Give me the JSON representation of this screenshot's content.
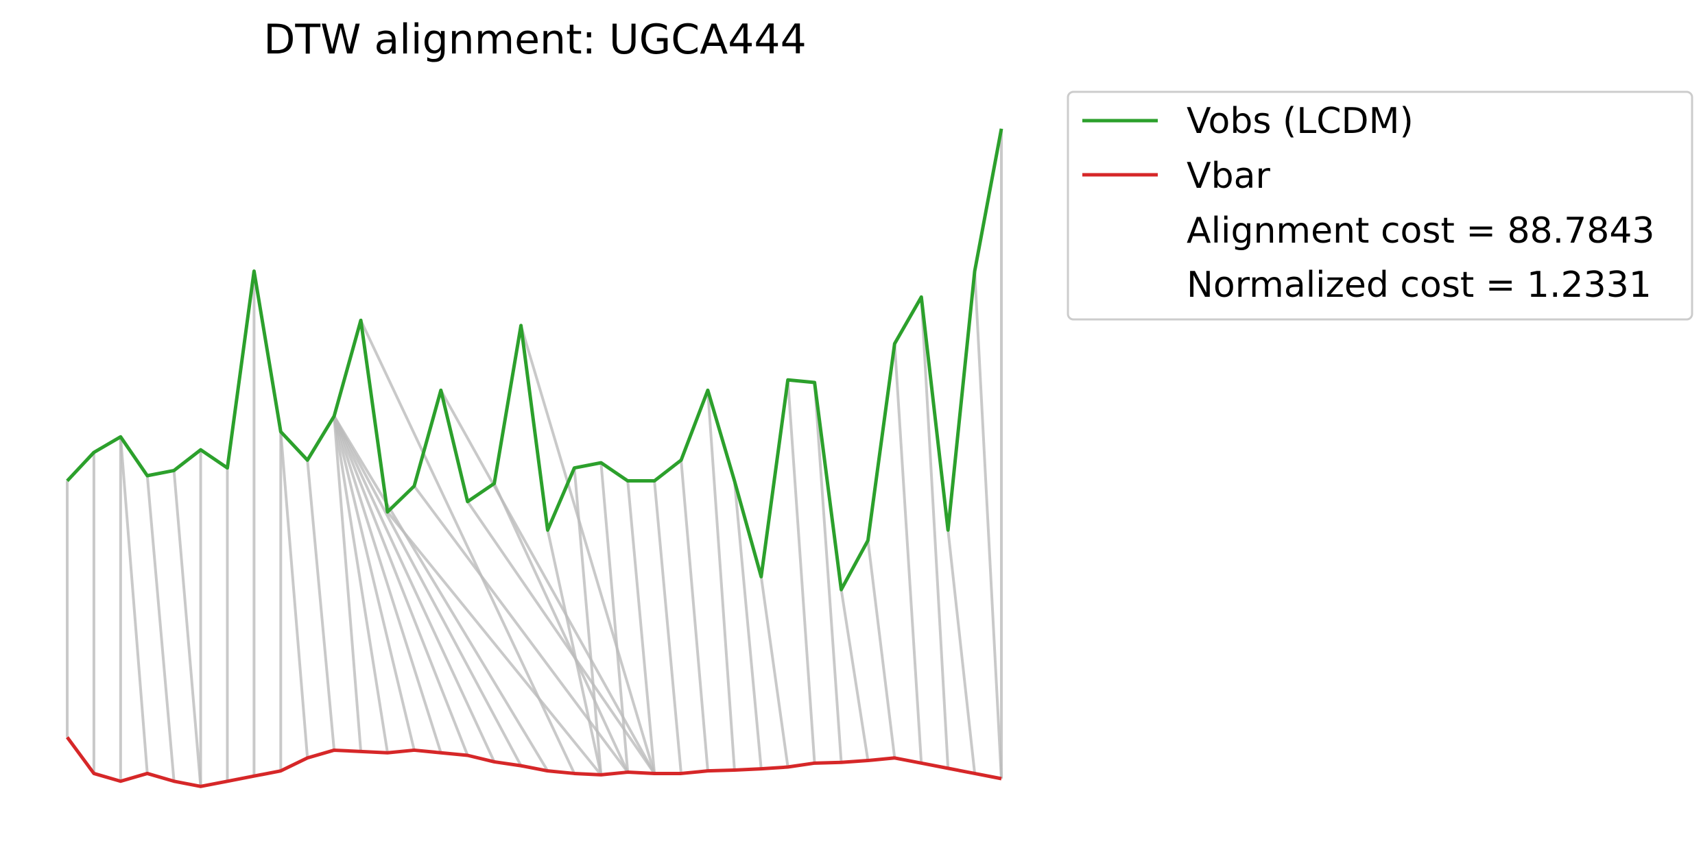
{
  "chart_data": {
    "type": "line",
    "title": "DTW alignment: UGCA444",
    "xlabel": "",
    "ylabel": "",
    "axes_visible": false,
    "grid": false,
    "legend_position": "outside-top-right",
    "colors": {
      "vobs": "#2ca02c",
      "vbar": "#d62728",
      "alignment": "#bbbbbb",
      "legend_border": "#cccccc"
    },
    "x": [
      0,
      1,
      2,
      3,
      4,
      5,
      6,
      7,
      8,
      9,
      10,
      11,
      12,
      13,
      14,
      15,
      16,
      17,
      18,
      19,
      20,
      21,
      22,
      23,
      24,
      25,
      26,
      27,
      28,
      29,
      30,
      31,
      32,
      33,
      34,
      35
    ],
    "series": [
      {
        "name": "Vobs (LCDM)",
        "values": [
          0.74,
          0.85,
          0.91,
          0.76,
          0.78,
          0.86,
          0.79,
          1.55,
          0.93,
          0.82,
          0.99,
          1.36,
          0.62,
          0.72,
          1.09,
          0.66,
          0.73,
          1.34,
          0.55,
          0.79,
          0.81,
          0.74,
          0.74,
          0.82,
          1.09,
          0.74,
          0.37,
          1.13,
          1.12,
          0.32,
          0.51,
          1.27,
          1.45,
          0.55,
          1.55,
          2.1
        ]
      },
      {
        "name": "Vbar",
        "values": [
          -0.25,
          -0.39,
          -0.42,
          -0.39,
          -0.42,
          -0.44,
          -0.42,
          -0.4,
          -0.38,
          -0.33,
          -0.3,
          -0.305,
          -0.31,
          -0.3,
          -0.31,
          -0.32,
          -0.345,
          -0.36,
          -0.38,
          -0.39,
          -0.395,
          -0.385,
          -0.39,
          -0.39,
          -0.38,
          -0.377,
          -0.372,
          -0.365,
          -0.35,
          -0.347,
          -0.34,
          -0.33,
          -0.35,
          -0.37,
          -0.39,
          -0.41
        ]
      }
    ],
    "alignment_path": [
      [
        0,
        0
      ],
      [
        1,
        1
      ],
      [
        2,
        2
      ],
      [
        2,
        3
      ],
      [
        3,
        4
      ],
      [
        4,
        5
      ],
      [
        5,
        5
      ],
      [
        6,
        6
      ],
      [
        7,
        7
      ],
      [
        8,
        8
      ],
      [
        8,
        9
      ],
      [
        9,
        10
      ],
      [
        10,
        11
      ],
      [
        10,
        12
      ],
      [
        10,
        13
      ],
      [
        10,
        14
      ],
      [
        10,
        15
      ],
      [
        10,
        16
      ],
      [
        10,
        17
      ],
      [
        10,
        18
      ],
      [
        11,
        19
      ],
      [
        12,
        20
      ],
      [
        13,
        21
      ],
      [
        14,
        22
      ],
      [
        15,
        22
      ],
      [
        16,
        21
      ],
      [
        17,
        22
      ],
      [
        18,
        20
      ],
      [
        19,
        20
      ],
      [
        20,
        21
      ],
      [
        21,
        22
      ],
      [
        22,
        23
      ],
      [
        23,
        24
      ],
      [
        24,
        25
      ],
      [
        25,
        26
      ],
      [
        26,
        27
      ],
      [
        27,
        28
      ],
      [
        28,
        29
      ],
      [
        29,
        30
      ],
      [
        30,
        31
      ],
      [
        31,
        32
      ],
      [
        32,
        33
      ],
      [
        33,
        34
      ],
      [
        34,
        35
      ],
      [
        35,
        35
      ]
    ],
    "ylim": [
      -0.5,
      2.2
    ],
    "legend": {
      "entries": [
        "Vobs (LCDM)",
        "Vbar"
      ],
      "annotations": [
        "Alignment cost = 88.7843",
        "Normalized cost = 1.2331"
      ]
    }
  }
}
